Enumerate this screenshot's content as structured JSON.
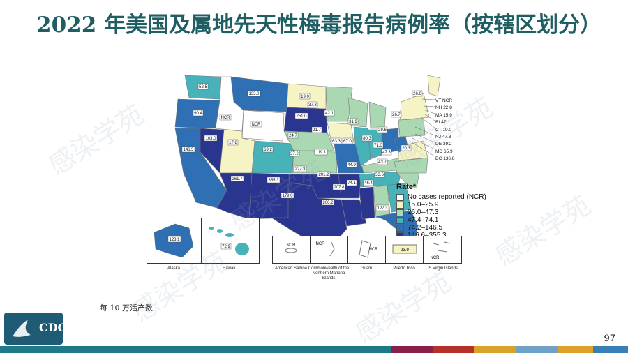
{
  "title": "2022 年美国及属地先天性梅毒报告病例率（按辖区划分）",
  "legend": {
    "title": "Rate*",
    "items": [
      {
        "label": "No cases reported (NCR)",
        "color": "#ffffff"
      },
      {
        "label": "15.0–25.9",
        "color": "#f6f3c4"
      },
      {
        "label": "26.0–47.3",
        "color": "#a9d8b3"
      },
      {
        "label": "47.4–74.1",
        "color": "#48b2b9"
      },
      {
        "label": "74.2–146.5",
        "color": "#2f6fb3"
      },
      {
        "label": "146.6–355.3",
        "color": "#2a3590"
      }
    ]
  },
  "state_values": {
    "WA": "52.5",
    "OR": "90.4",
    "CA": "146.5",
    "NV": "103.0",
    "ID": "NCR",
    "MT": "133.0",
    "WY": "NCR",
    "UT": "17.8",
    "AZ": "261.7",
    "CO": "69.2",
    "NM": "355.3",
    "ND": "19.0",
    "SD": "251.0",
    "NE": "24.7",
    "KS": "37.2",
    "OK": "227.3",
    "TX": "179.0",
    "MN": "37.3",
    "IA": "21.7",
    "MO": "119.1",
    "AR": "201.2",
    "LA": "200.2",
    "WI": "42.1",
    "IL": "63.3",
    "MS": "207.8",
    "MI": "31.9",
    "IN": "67.0",
    "KY": "44.9",
    "TN": "74.1",
    "AL": "46.4",
    "OH": "80.3",
    "GA": "53.6",
    "FL": "127.3",
    "SC": "43.7",
    "NC": "47.3",
    "VA": "20.3",
    "WV": "71.0",
    "PA": "29.6",
    "NY": "26.7",
    "ME": "26.6",
    "AK": "128.1",
    "HI": "72.9"
  },
  "callouts": [
    "VT  NCR",
    "NH  22.8",
    "MA  15.9",
    "RI  47.1",
    "CT  19.0",
    "NJ  47.8",
    "DE  39.2",
    "MD  65.9",
    "DC  136.8"
  ],
  "insets": [
    {
      "label": "Alaska"
    },
    {
      "label": "Hawaii"
    },
    {
      "label": "American Samoa",
      "value": "NCR"
    },
    {
      "label": "Commonwealth of the Northern Mariana Islands",
      "value": "NCR"
    },
    {
      "label": "Guam",
      "value": "NCR"
    },
    {
      "label": "Puerto Rico",
      "value": "23.9"
    },
    {
      "label": "US Virgin Islands",
      "value": "NCR"
    }
  ],
  "note": "每 10 万活产数",
  "logo_text": "CDC",
  "page_number": "97",
  "watermark": "感染学苑",
  "bottom_bar_colors": [
    "#1e7a86",
    "#1e7a86",
    "#8a1f4a",
    "#b5312a",
    "#d8a32b",
    "#6fa1c9",
    "#e0a02c",
    "#3a7fb6"
  ]
}
